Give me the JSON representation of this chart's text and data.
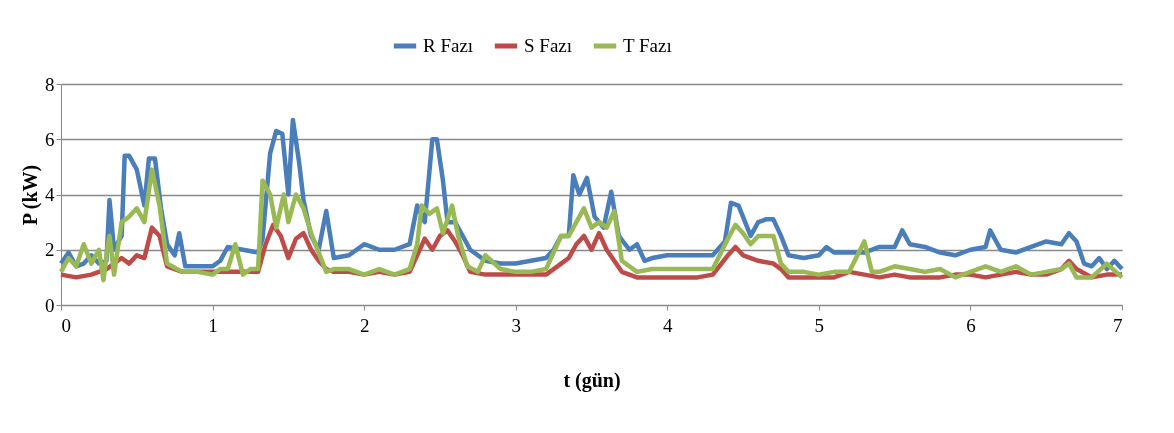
{
  "chart_data": {
    "type": "line",
    "xlabel": "t (gün)",
    "ylabel": "P (kW)",
    "xlim": [
      0,
      7
    ],
    "xticks": [
      0,
      1,
      2,
      3,
      4,
      5,
      6,
      7
    ],
    "ylim": [
      0,
      8
    ],
    "yticks": [
      0,
      2,
      4,
      6,
      8
    ],
    "grid": "y",
    "legend": "top",
    "marker": "none",
    "line_style": "solid",
    "series": [
      {
        "name": "R Fazı",
        "color": "#4a7ebb",
        "x": [
          0.0,
          0.05,
          0.1,
          0.15,
          0.2,
          0.25,
          0.3,
          0.32,
          0.35,
          0.4,
          0.42,
          0.45,
          0.5,
          0.55,
          0.58,
          0.62,
          0.66,
          0.7,
          0.75,
          0.78,
          0.82,
          0.9,
          1.0,
          1.05,
          1.1,
          1.2,
          1.3,
          1.33,
          1.38,
          1.42,
          1.46,
          1.5,
          1.53,
          1.57,
          1.6,
          1.65,
          1.7,
          1.75,
          1.8,
          1.9,
          2.0,
          2.1,
          2.2,
          2.3,
          2.35,
          2.4,
          2.45,
          2.48,
          2.52,
          2.55,
          2.6,
          2.65,
          2.7,
          2.8,
          2.9,
          3.0,
          3.1,
          3.2,
          3.25,
          3.3,
          3.35,
          3.38,
          3.42,
          3.47,
          3.52,
          3.58,
          3.63,
          3.68,
          3.75,
          3.8,
          3.85,
          3.9,
          4.0,
          4.1,
          4.2,
          4.3,
          4.38,
          4.42,
          4.47,
          4.55,
          4.6,
          4.65,
          4.7,
          4.75,
          4.8,
          4.9,
          5.0,
          5.05,
          5.1,
          5.2,
          5.3,
          5.4,
          5.5,
          5.55,
          5.6,
          5.7,
          5.8,
          5.9,
          6.0,
          6.1,
          6.13,
          6.2,
          6.3,
          6.4,
          6.5,
          6.6,
          6.65,
          6.7,
          6.75,
          6.8,
          6.85,
          6.9,
          6.95,
          7.0
        ],
        "values": [
          1.5,
          1.9,
          1.4,
          1.5,
          1.8,
          1.5,
          1.6,
          3.8,
          2.0,
          2.5,
          5.4,
          5.4,
          4.9,
          3.6,
          5.3,
          5.3,
          3.5,
          2.2,
          1.8,
          2.6,
          1.4,
          1.4,
          1.4,
          1.6,
          2.1,
          2.0,
          1.9,
          2.4,
          5.5,
          6.3,
          6.2,
          4.0,
          6.7,
          5.2,
          3.8,
          2.5,
          2.0,
          3.4,
          1.7,
          1.8,
          2.2,
          2.0,
          2.0,
          2.2,
          3.6,
          3.0,
          6.0,
          6.0,
          4.5,
          3.0,
          3.0,
          2.5,
          2.0,
          1.6,
          1.5,
          1.5,
          1.6,
          1.7,
          2.0,
          2.5,
          2.5,
          4.7,
          4.0,
          4.6,
          3.2,
          2.8,
          4.1,
          2.5,
          2.0,
          2.2,
          1.6,
          1.7,
          1.8,
          1.8,
          1.8,
          1.8,
          2.3,
          3.7,
          3.6,
          2.5,
          3.0,
          3.1,
          3.1,
          2.5,
          1.8,
          1.7,
          1.8,
          2.1,
          1.9,
          1.9,
          1.9,
          2.1,
          2.1,
          2.7,
          2.2,
          2.1,
          1.9,
          1.8,
          2.0,
          2.1,
          2.7,
          2.0,
          1.9,
          2.1,
          2.3,
          2.2,
          2.6,
          2.3,
          1.5,
          1.4,
          1.7,
          1.3,
          1.6,
          1.3
        ]
      },
      {
        "name": "S Fazı",
        "color": "#be4b48",
        "x": [
          0.0,
          0.1,
          0.2,
          0.3,
          0.4,
          0.45,
          0.5,
          0.55,
          0.6,
          0.65,
          0.7,
          0.8,
          0.9,
          1.0,
          1.1,
          1.2,
          1.3,
          1.35,
          1.4,
          1.45,
          1.5,
          1.55,
          1.6,
          1.65,
          1.7,
          1.75,
          1.8,
          1.9,
          2.0,
          2.1,
          2.2,
          2.3,
          2.35,
          2.4,
          2.45,
          2.5,
          2.55,
          2.6,
          2.65,
          2.7,
          2.8,
          2.9,
          3.0,
          3.1,
          3.2,
          3.3,
          3.35,
          3.4,
          3.45,
          3.5,
          3.55,
          3.6,
          3.65,
          3.7,
          3.8,
          3.9,
          4.0,
          4.1,
          4.2,
          4.3,
          4.4,
          4.45,
          4.5,
          4.6,
          4.7,
          4.75,
          4.8,
          4.9,
          5.0,
          5.1,
          5.2,
          5.3,
          5.4,
          5.5,
          5.6,
          5.7,
          5.8,
          5.9,
          6.0,
          6.1,
          6.2,
          6.3,
          6.4,
          6.5,
          6.6,
          6.65,
          6.7,
          6.8,
          6.9,
          7.0
        ],
        "values": [
          1.1,
          1.0,
          1.1,
          1.3,
          1.7,
          1.5,
          1.8,
          1.7,
          2.8,
          2.5,
          1.4,
          1.2,
          1.2,
          1.2,
          1.2,
          1.2,
          1.2,
          2.2,
          2.9,
          2.5,
          1.7,
          2.4,
          2.6,
          2.0,
          1.6,
          1.3,
          1.2,
          1.2,
          1.1,
          1.2,
          1.1,
          1.2,
          1.8,
          2.4,
          2.0,
          2.5,
          2.7,
          2.3,
          1.8,
          1.2,
          1.1,
          1.1,
          1.1,
          1.1,
          1.1,
          1.5,
          1.7,
          2.2,
          2.5,
          2.0,
          2.6,
          2.0,
          1.6,
          1.2,
          1.0,
          1.0,
          1.0,
          1.0,
          1.0,
          1.1,
          1.8,
          2.1,
          1.8,
          1.6,
          1.5,
          1.3,
          1.0,
          1.0,
          1.0,
          1.0,
          1.2,
          1.1,
          1.0,
          1.1,
          1.0,
          1.0,
          1.0,
          1.1,
          1.1,
          1.0,
          1.1,
          1.2,
          1.1,
          1.1,
          1.3,
          1.6,
          1.3,
          1.0,
          1.1,
          1.1
        ]
      },
      {
        "name": "T Fazı",
        "color": "#98b954",
        "x": [
          0.0,
          0.05,
          0.1,
          0.15,
          0.2,
          0.25,
          0.28,
          0.3,
          0.32,
          0.35,
          0.4,
          0.45,
          0.5,
          0.55,
          0.6,
          0.65,
          0.7,
          0.8,
          0.9,
          1.0,
          1.05,
          1.1,
          1.15,
          1.2,
          1.25,
          1.3,
          1.33,
          1.38,
          1.42,
          1.47,
          1.5,
          1.55,
          1.6,
          1.65,
          1.7,
          1.75,
          1.8,
          1.9,
          2.0,
          2.1,
          2.2,
          2.3,
          2.35,
          2.38,
          2.43,
          2.48,
          2.52,
          2.58,
          2.62,
          2.68,
          2.75,
          2.8,
          2.9,
          3.0,
          3.1,
          3.2,
          3.3,
          3.35,
          3.4,
          3.45,
          3.5,
          3.55,
          3.6,
          3.65,
          3.7,
          3.8,
          3.9,
          4.0,
          4.1,
          4.2,
          4.3,
          4.4,
          4.45,
          4.5,
          4.55,
          4.6,
          4.7,
          4.75,
          4.8,
          4.9,
          5.0,
          5.1,
          5.2,
          5.3,
          5.35,
          5.4,
          5.5,
          5.6,
          5.7,
          5.8,
          5.9,
          6.0,
          6.1,
          6.2,
          6.3,
          6.4,
          6.5,
          6.6,
          6.65,
          6.7,
          6.8,
          6.9,
          7.0
        ],
        "values": [
          1.2,
          1.7,
          1.4,
          2.2,
          1.5,
          2.0,
          0.9,
          1.8,
          2.5,
          1.1,
          3.0,
          3.2,
          3.5,
          3.0,
          4.9,
          3.6,
          1.5,
          1.2,
          1.2,
          1.1,
          1.3,
          1.3,
          2.2,
          1.1,
          1.3,
          1.3,
          4.5,
          4.0,
          2.8,
          4.0,
          3.0,
          4.0,
          3.5,
          2.6,
          1.9,
          1.2,
          1.3,
          1.3,
          1.1,
          1.3,
          1.1,
          1.3,
          2.2,
          3.6,
          3.3,
          3.5,
          2.6,
          3.6,
          2.5,
          1.4,
          1.2,
          1.8,
          1.3,
          1.2,
          1.2,
          1.3,
          2.5,
          2.5,
          3.0,
          3.5,
          2.8,
          3.0,
          2.8,
          3.4,
          1.6,
          1.2,
          1.3,
          1.3,
          1.3,
          1.3,
          1.3,
          2.4,
          2.9,
          2.6,
          2.2,
          2.5,
          2.5,
          1.5,
          1.2,
          1.2,
          1.1,
          1.2,
          1.2,
          2.3,
          1.2,
          1.2,
          1.4,
          1.3,
          1.2,
          1.3,
          1.0,
          1.2,
          1.4,
          1.2,
          1.4,
          1.1,
          1.2,
          1.3,
          1.5,
          1.0,
          1.0,
          1.5,
          1.0
        ]
      }
    ]
  }
}
